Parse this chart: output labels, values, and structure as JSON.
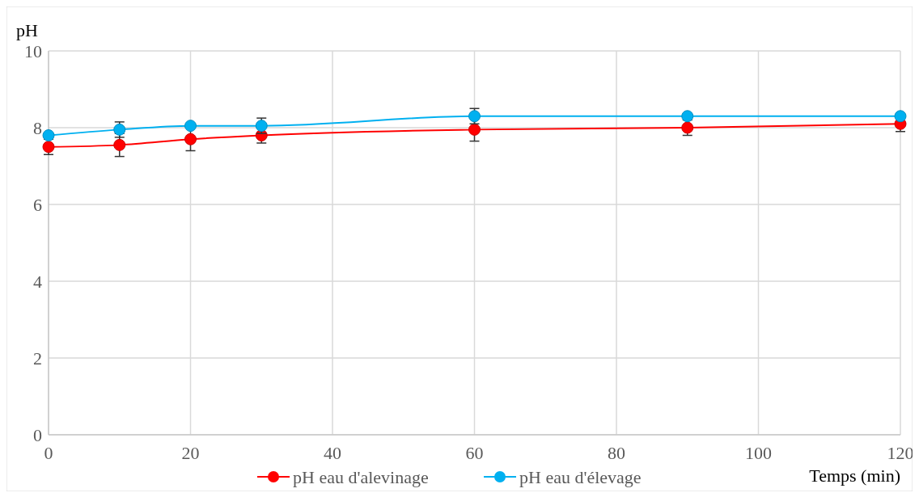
{
  "chart_data": {
    "type": "line",
    "xlabel": "Temps (min)",
    "ylabel": "pH",
    "x": [
      0,
      10,
      20,
      30,
      60,
      90,
      120
    ],
    "xlim": [
      0,
      120
    ],
    "xticks": [
      0,
      20,
      40,
      60,
      80,
      100,
      120
    ],
    "ylim": [
      0,
      10
    ],
    "yticks": [
      0,
      2,
      4,
      6,
      8,
      10
    ],
    "grid": true,
    "legend": "bottom",
    "marker": "circle",
    "series": [
      {
        "name": "pH eau d'alevinage",
        "color": "#ff0000",
        "values": [
          7.5,
          7.55,
          7.7,
          7.8,
          7.95,
          8.0,
          8.1
        ],
        "errors": [
          0.2,
          0.3,
          0.3,
          0.2,
          0.3,
          0.2,
          0.2
        ]
      },
      {
        "name": "pH eau d'élevage",
        "color": "#00b0f0",
        "values": [
          7.8,
          7.95,
          8.05,
          8.05,
          8.3,
          8.3,
          8.3
        ],
        "errors": [
          null,
          0.2,
          null,
          0.2,
          0.2,
          null,
          null
        ]
      }
    ]
  }
}
